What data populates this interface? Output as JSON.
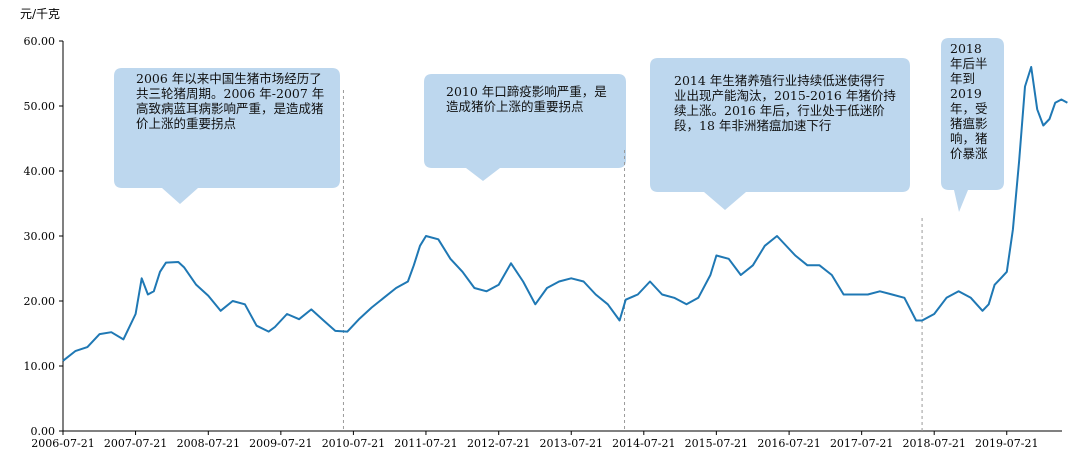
{
  "chart_data": {
    "type": "line",
    "unit_label": "元/千克",
    "ylim": [
      0,
      60
    ],
    "y_ticks": [
      "0.00",
      "10.00",
      "20.00",
      "30.00",
      "40.00",
      "50.00",
      "60.00"
    ],
    "x_ticks": [
      "2006-07-21",
      "2007-07-21",
      "2008-07-21",
      "2009-07-21",
      "2010-07-21",
      "2011-07-21",
      "2012-07-21",
      "2013-07-21",
      "2014-07-21",
      "2015-07-21",
      "2016-07-21",
      "2017-07-21",
      "2018-07-21",
      "2019-07-21"
    ],
    "grid": false,
    "line_color": "#1f78b4",
    "series": [
      {
        "values_x": [
          "2006-07-21",
          "2006-09-21",
          "2006-11-21",
          "2007-01-21",
          "2007-03-21",
          "2007-05-21",
          "2007-07-21",
          "2007-08-21",
          "2007-09-21",
          "2007-10-21",
          "2007-11-21",
          "2007-12-21",
          "2008-02-21",
          "2008-03-21",
          "2008-05-21",
          "2008-07-21",
          "2008-09-21",
          "2008-11-21",
          "2009-01-21",
          "2009-03-21",
          "2009-05-21",
          "2009-06-21",
          "2009-08-21",
          "2009-10-21",
          "2009-12-21",
          "2010-02-21",
          "2010-04-21",
          "2010-06-21",
          "2010-08-21",
          "2010-10-21",
          "2010-12-21",
          "2011-02-21",
          "2011-04-21",
          "2011-05-21",
          "2011-06-21",
          "2011-07-21",
          "2011-09-21",
          "2011-11-21",
          "2012-01-21",
          "2012-03-21",
          "2012-05-21",
          "2012-07-21",
          "2012-09-21",
          "2012-11-21",
          "2013-01-21",
          "2013-03-21",
          "2013-05-21",
          "2013-07-21",
          "2013-09-21",
          "2013-11-21",
          "2014-01-21",
          "2014-03-21",
          "2014-04-21",
          "2014-06-21",
          "2014-08-21",
          "2014-10-21",
          "2014-12-21",
          "2015-02-21",
          "2015-04-21",
          "2015-06-21",
          "2015-07-21",
          "2015-09-21",
          "2015-11-21",
          "2016-01-21",
          "2016-03-21",
          "2016-05-21",
          "2016-06-21",
          "2016-08-21",
          "2016-10-21",
          "2016-12-21",
          "2017-02-21",
          "2017-04-21",
          "2017-06-21",
          "2017-08-21",
          "2017-10-21",
          "2017-12-21",
          "2018-02-21",
          "2018-04-21",
          "2018-05-21",
          "2018-07-21",
          "2018-09-21",
          "2018-11-21",
          "2019-01-21",
          "2019-03-21",
          "2019-04-21",
          "2019-05-21",
          "2019-06-21",
          "2019-07-21",
          "2019-08-21",
          "2019-09-21",
          "2019-10-21",
          "2019-11-21",
          "2019-12-21",
          "2020-01-21",
          "2020-02-21",
          "2020-03-21",
          "2020-04-21",
          "2020-05-21"
        ],
        "values": [
          10.8,
          12.3,
          12.9,
          14.9,
          15.2,
          14.1,
          18.0,
          23.5,
          21.0,
          21.5,
          24.5,
          25.9,
          26.0,
          25.2,
          22.5,
          20.8,
          18.5,
          20.0,
          19.5,
          16.2,
          15.3,
          16.0,
          18.0,
          17.2,
          18.7,
          17.0,
          15.4,
          15.3,
          17.3,
          19.0,
          20.5,
          22.0,
          23.0,
          25.5,
          28.5,
          30.0,
          29.5,
          26.5,
          24.5,
          22.0,
          21.5,
          22.5,
          25.8,
          23.0,
          19.5,
          22.0,
          23.0,
          23.5,
          23.0,
          21.0,
          19.5,
          17.0,
          20.2,
          21.0,
          23.0,
          21.0,
          20.5,
          19.5,
          20.5,
          24.0,
          27.0,
          26.5,
          24.0,
          25.5,
          28.5,
          30.0,
          29.0,
          27.0,
          25.5,
          25.5,
          24.0,
          21.0,
          21.0,
          21.0,
          21.5,
          21.0,
          20.5,
          17.0,
          17.0,
          18.0,
          20.5,
          21.5,
          20.5,
          18.5,
          19.5,
          22.5,
          23.5,
          24.5,
          31.0,
          41.5,
          53.0,
          56.0,
          49.5,
          47.0,
          48.0,
          50.5,
          51.0,
          50.5
        ]
      }
    ],
    "callouts": [
      {
        "text": "2006 年以来中国生猪市场经历了共三轮猪周期。2006 年-2007 年高致病蓝耳病影响严重，是造成猪价上涨的重要拐点"
      },
      {
        "text": "2010 年口蹄疫影响严重，是造成猪价上涨的重要拐点"
      },
      {
        "text": "2014 年生猪养殖行业持续低迷使得行业出现产能淘汰，2015-2016 年猪价持续上涨。2016 年后，行业处于低迷阶段，18 年非洲猪瘟加速下行"
      },
      {
        "text": "2018 年后半年到 2019 年，受猪瘟影响，猪价暴涨"
      }
    ]
  }
}
